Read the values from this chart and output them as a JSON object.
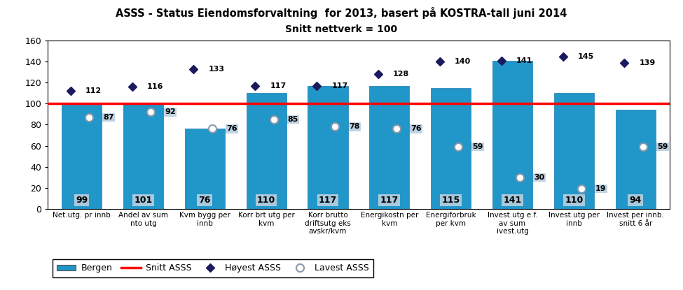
{
  "title1": "ASSS - Status Eiendomsforvaltning  for 2013, basert på KOSTRA-tall juni 2014",
  "title2": "Snitt nettverk = 100",
  "categories": [
    "Net.utg. pr innb",
    "Andel av sum\nnto utg",
    "Kvm bygg per\ninnb",
    "Korr brt utg per\nkvm",
    "Korr brutto\ndriftsutg eks\navskr/kvm",
    "Energikostn per\nkvm",
    "Energiforbruk\nper kvm",
    "Invest.utg e.f.\nav sum\nivest.utg",
    "Invest.utg per\ninnb",
    "Invest per innb.\nsnitt 6 år"
  ],
  "bergen": [
    99,
    101,
    76,
    110,
    117,
    117,
    115,
    141,
    110,
    94
  ],
  "highest": [
    112,
    116,
    133,
    117,
    117,
    128,
    140,
    141,
    145,
    139
  ],
  "lowest": [
    87,
    92,
    76,
    85,
    78,
    76,
    59,
    30,
    19,
    59
  ],
  "snitt": 100,
  "bar_color": "#2196C8",
  "bar_edge_color": "#1a7ab0",
  "snitt_color": "red",
  "highest_color": "#1a1a5e",
  "label_bg_color": "#b8cfe0",
  "ylim": [
    0,
    160
  ],
  "yticks": [
    0,
    20,
    40,
    60,
    80,
    100,
    120,
    140,
    160
  ],
  "legend_bergen": "Bergen",
  "legend_snitt": "Snitt ASSS",
  "legend_highest": "Høyest ASSS",
  "legend_lowest": "Lavest ASSS"
}
